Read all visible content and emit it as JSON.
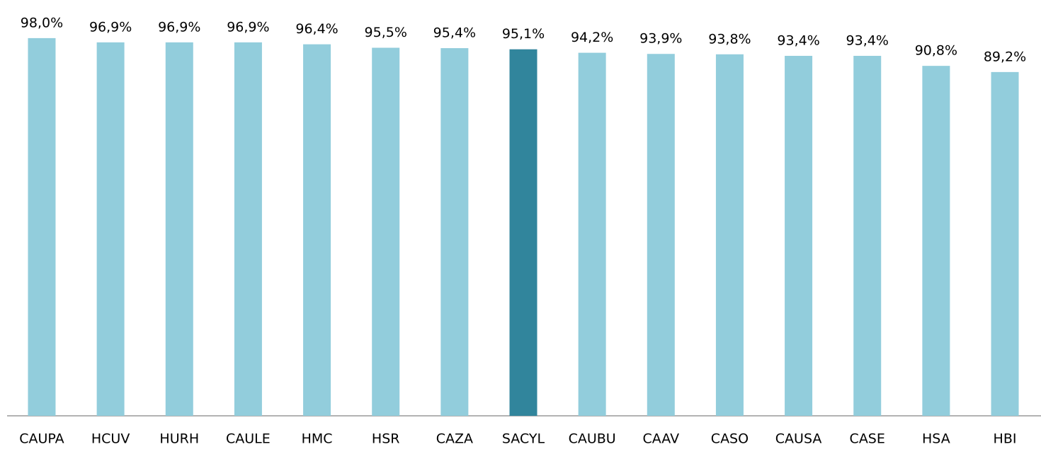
{
  "chart_data": {
    "type": "bar",
    "categories": [
      "CAUPA",
      "HCUV",
      "HURH",
      "CAULE",
      "HMC",
      "HSR",
      "CAZA",
      "SACYL",
      "CAUBU",
      "CAAV",
      "CASO",
      "CAUSA",
      "CASE",
      "HSA",
      "HBI"
    ],
    "values": [
      98.0,
      96.9,
      96.9,
      96.9,
      96.4,
      95.5,
      95.4,
      95.1,
      94.2,
      93.9,
      93.8,
      93.4,
      93.4,
      90.8,
      89.2
    ],
    "value_labels": [
      "98,0%",
      "96,9%",
      "96,9%",
      "96,9%",
      "96,4%",
      "95,5%",
      "95,4%",
      "95,1%",
      "94,2%",
      "93,9%",
      "93,8%",
      "93,4%",
      "93,4%",
      "90,8%",
      "89,2%"
    ],
    "colors": [
      "#92cddc",
      "#92cddc",
      "#92cddc",
      "#92cddc",
      "#92cddc",
      "#92cddc",
      "#92cddc",
      "#31859c",
      "#92cddc",
      "#92cddc",
      "#92cddc",
      "#92cddc",
      "#92cddc",
      "#92cddc",
      "#92cddc"
    ],
    "ylim": [
      0,
      100
    ],
    "grid": false
  }
}
